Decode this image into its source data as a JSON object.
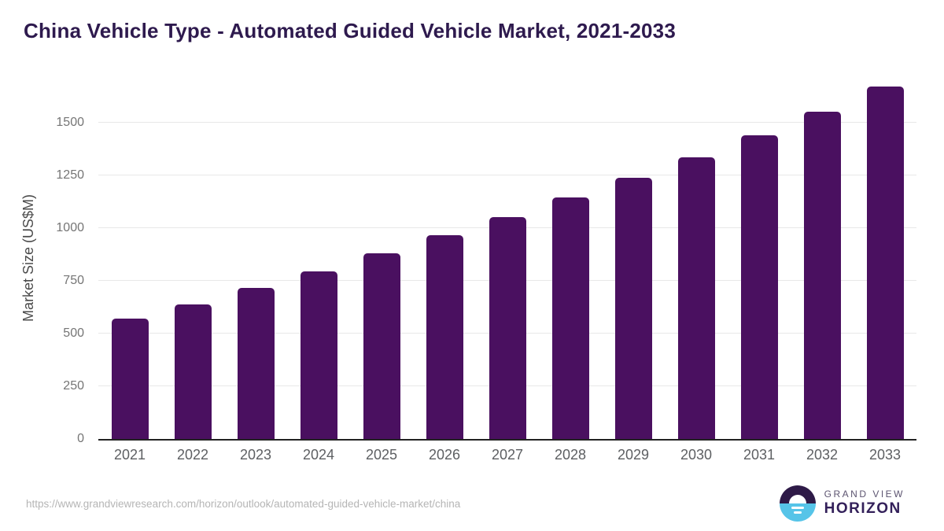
{
  "title": "China Vehicle Type - Automated Guided Vehicle Market, 2021-2033",
  "source_url": "https://www.grandviewresearch.com/horizon/outlook/automated-guided-vehicle-market/china",
  "logo": {
    "line1": "GRAND VIEW",
    "line2": "HORIZON",
    "icon": "sun-over-horizon-icon"
  },
  "colors": {
    "bar": "#4a1060",
    "title_text": "#2e1a4e",
    "axis_line": "#222222",
    "gridline": "#e8e8e8",
    "tick_text": "#757575",
    "axis_title_text": "#4a4a4a",
    "xlabel_text": "#5d5f62",
    "url_text": "#b5b5b5",
    "logo_dark": "#2e1a47",
    "logo_blue": "#56c4e8",
    "logo_gray": "#5c5470",
    "logo_dark_text": "#33205a"
  },
  "chart_data": {
    "type": "bar",
    "title": "China Vehicle Type - Automated Guided Vehicle Market, 2021-2033",
    "categories": [
      "2021",
      "2022",
      "2023",
      "2024",
      "2025",
      "2026",
      "2027",
      "2028",
      "2029",
      "2030",
      "2031",
      "2032",
      "2033"
    ],
    "values": [
      570,
      640,
      717,
      794,
      880,
      966,
      1053,
      1146,
      1241,
      1336,
      1441,
      1552,
      1673
    ],
    "xlabel": "",
    "ylabel": "Market Size (US$M)",
    "yticks": [
      0,
      250,
      500,
      750,
      1000,
      1250,
      1500
    ],
    "ylim": [
      0,
      1718
    ],
    "grid": true,
    "legend": false,
    "bar_color": "#4a1060"
  }
}
